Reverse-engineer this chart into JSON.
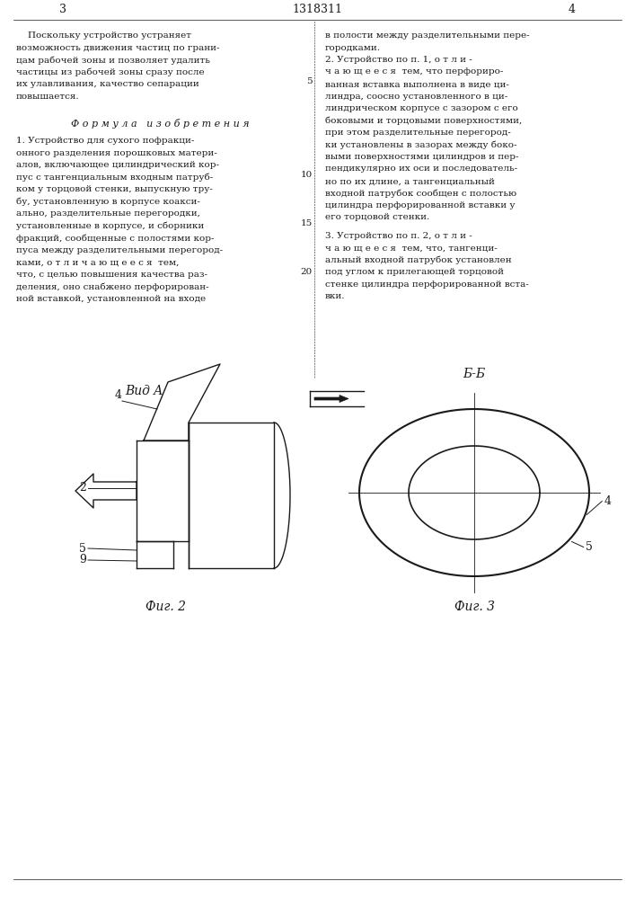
{
  "title": "1318311",
  "page_left": "3",
  "page_right": "4",
  "bg_color": "#ffffff",
  "text_color": "#000000",
  "line_color": "#1a1a1a",
  "font_size_body": 7.5,
  "font_size_label": 8.5,
  "font_size_header": 9,
  "fig2_label": "Фиг. 2",
  "fig3_label": "Фиг. 3",
  "vid_a_label": "Вид A",
  "bb_label": "Б-Б",
  "formula_label": "Ф о р м у л а   и з о б р е т е н и я",
  "line_numbers": [
    "5",
    "10",
    "15",
    "20"
  ]
}
